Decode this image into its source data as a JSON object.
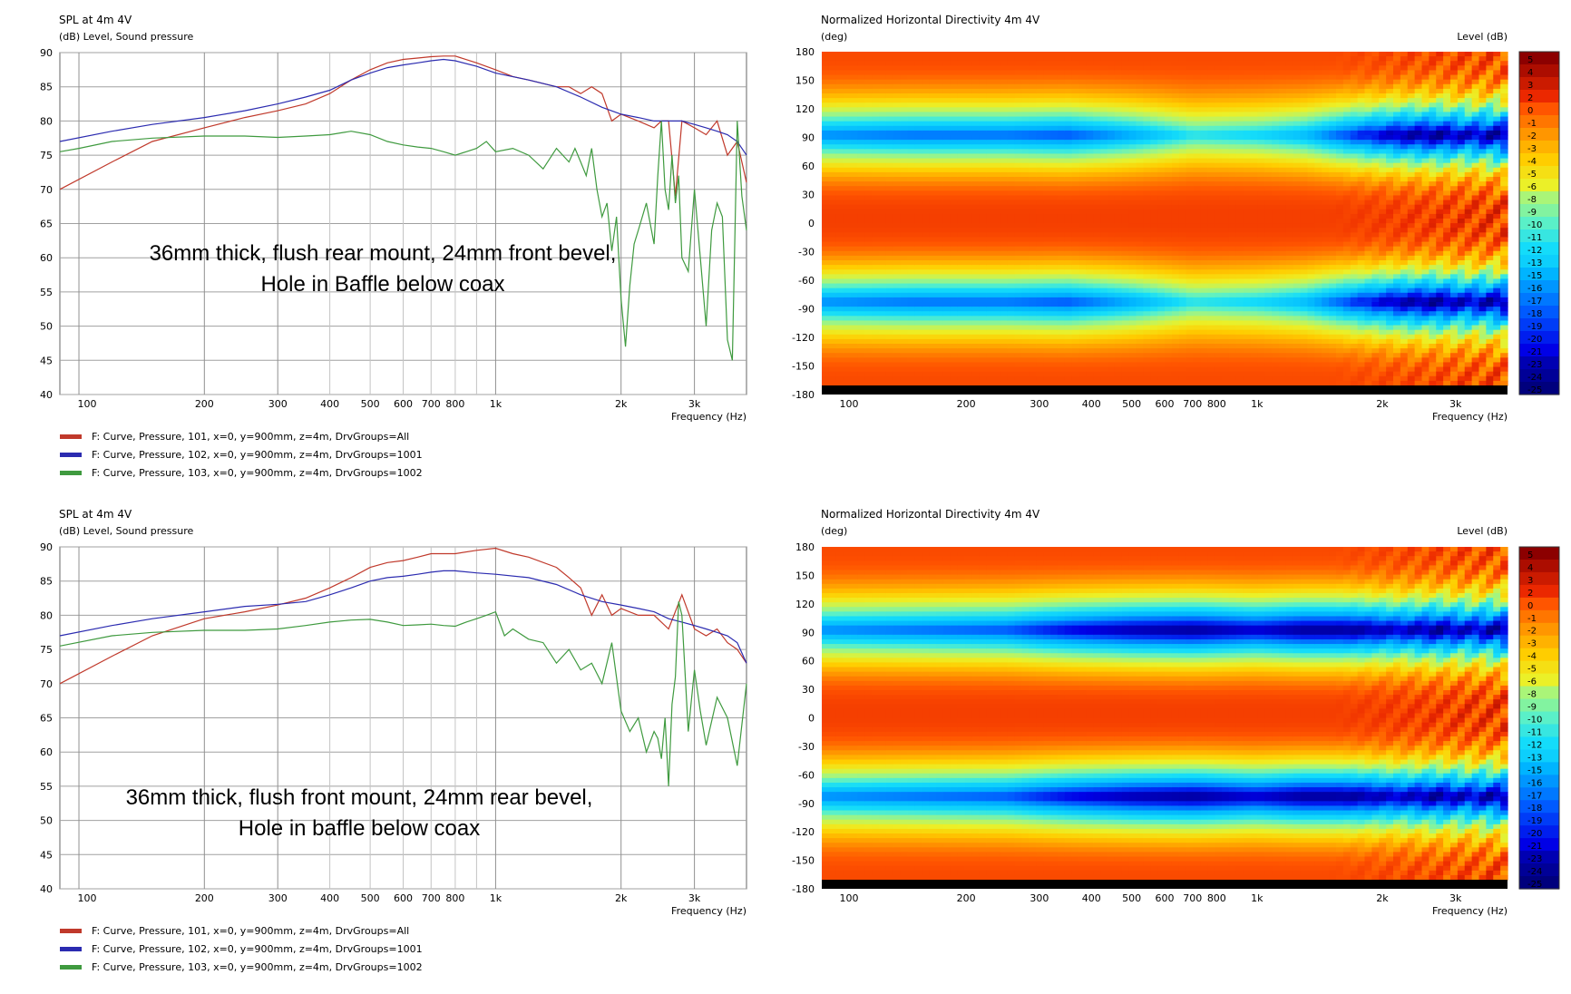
{
  "colors": {
    "red": "#c0392b",
    "blue": "#2b2bb0",
    "green": "#3f9a3f",
    "grid": "#9a9a9a"
  },
  "chart_data": [
    {
      "type": "line",
      "title": "SPL at 4m 4V",
      "ylabel": "(dB)  Level, Sound pressure",
      "xlabel": "Frequency  (Hz)",
      "xscale": "log",
      "xlim": [
        90,
        4000
      ],
      "ylim": [
        40,
        90
      ],
      "grid": true,
      "xticks": [
        {
          "v": 100,
          "label": "100"
        },
        {
          "v": 200,
          "label": "200"
        },
        {
          "v": 300,
          "label": "300"
        },
        {
          "v": 400,
          "label": "400"
        },
        {
          "v": 500,
          "label": "500"
        },
        {
          "v": 600,
          "label": "600"
        },
        {
          "v": 700,
          "label": "700"
        },
        {
          "v": 800,
          "label": "800"
        },
        {
          "v": 1000,
          "label": "1k"
        },
        {
          "v": 2000,
          "label": "2k"
        },
        {
          "v": 3000,
          "label": "3k"
        }
      ],
      "yticks": [
        40,
        45,
        50,
        55,
        60,
        65,
        70,
        75,
        80,
        85,
        90
      ],
      "annotation": [
        "36mm thick, flush rear mount, 24mm front bevel,",
        "Hole in Baffle below coax"
      ],
      "series": [
        {
          "name": "F: Curve, Pressure, 101, x=0, y=900mm, z=4m, DrvGroups=All",
          "color": "#c0392b",
          "x": [
            90,
            120,
            150,
            200,
            250,
            300,
            350,
            400,
            450,
            500,
            550,
            600,
            650,
            700,
            750,
            800,
            900,
            1000,
            1100,
            1200,
            1400,
            1500,
            1600,
            1700,
            1800,
            1900,
            2000,
            2200,
            2400,
            2500,
            2600,
            2700,
            2800,
            3000,
            3200,
            3400,
            3600,
            3800,
            4000
          ],
          "y": [
            70,
            74,
            77,
            79,
            80.5,
            81.5,
            82.5,
            84,
            86,
            87.5,
            88.5,
            89,
            89.2,
            89.4,
            89.5,
            89.5,
            88.5,
            87.5,
            86.5,
            86,
            85,
            85,
            84,
            85,
            84,
            80,
            81,
            80,
            79,
            80,
            80,
            69,
            80,
            79,
            78,
            80,
            75,
            77,
            71
          ]
        },
        {
          "name": "F: Curve, Pressure, 102, x=0, y=900mm, z=4m, DrvGroups=1001",
          "color": "#2b2bb0",
          "x": [
            90,
            120,
            150,
            200,
            250,
            300,
            350,
            400,
            450,
            500,
            550,
            600,
            650,
            700,
            750,
            800,
            900,
            1000,
            1200,
            1400,
            1600,
            1800,
            2000,
            2200,
            2400,
            2600,
            2800,
            3000,
            3200,
            3400,
            3600,
            3800,
            4000
          ],
          "y": [
            77,
            78.5,
            79.5,
            80.5,
            81.5,
            82.5,
            83.5,
            84.5,
            86,
            87,
            87.8,
            88.2,
            88.5,
            88.8,
            89,
            88.8,
            88,
            87,
            86,
            85,
            83.5,
            82,
            81,
            80.5,
            80,
            80,
            80,
            79.5,
            79,
            78.5,
            78,
            77,
            75
          ]
        },
        {
          "name": "F: Curve, Pressure, 103, x=0, y=900mm, z=4m, DrvGroups=1002",
          "color": "#3f9a3f",
          "x": [
            90,
            100,
            120,
            150,
            200,
            250,
            300,
            350,
            400,
            450,
            500,
            550,
            600,
            650,
            700,
            750,
            800,
            850,
            900,
            950,
            1000,
            1100,
            1200,
            1300,
            1400,
            1500,
            1550,
            1600,
            1650,
            1700,
            1750,
            1800,
            1850,
            1900,
            1950,
            2000,
            2050,
            2100,
            2150,
            2200,
            2300,
            2400,
            2450,
            2500,
            2550,
            2600,
            2650,
            2700,
            2750,
            2800,
            2900,
            3000,
            3100,
            3200,
            3300,
            3400,
            3500,
            3600,
            3700,
            3800,
            3900,
            4000
          ],
          "y": [
            75.5,
            76,
            77,
            77.5,
            77.8,
            77.8,
            77.6,
            77.8,
            78,
            78.5,
            78,
            77,
            76.5,
            76.2,
            76,
            75.5,
            75,
            75.5,
            76,
            77,
            75.5,
            76,
            75,
            73,
            76,
            74,
            76,
            74,
            72,
            76,
            70,
            66,
            68,
            61,
            66,
            54,
            47,
            56,
            62,
            64,
            68,
            62,
            72,
            80,
            70,
            67,
            75,
            68,
            72,
            60,
            58,
            70,
            60,
            50,
            64,
            68,
            66,
            48,
            45,
            80,
            69,
            64
          ]
        }
      ]
    },
    {
      "type": "heatmap",
      "title": "Normalized Horizontal Directivity 4m 4V",
      "ylabel": "(deg)",
      "colorbar_label": "Level  (dB)",
      "xlabel": "Frequency  (Hz)",
      "xscale": "log",
      "xlim": [
        90,
        4000
      ],
      "ylim": [
        -180,
        180
      ],
      "xticks": [
        {
          "v": 100,
          "label": "100"
        },
        {
          "v": 200,
          "label": "200"
        },
        {
          "v": 300,
          "label": "300"
        },
        {
          "v": 400,
          "label": "400"
        },
        {
          "v": 500,
          "label": "500"
        },
        {
          "v": 600,
          "label": "600"
        },
        {
          "v": 700,
          "label": "700"
        },
        {
          "v": 800,
          "label": "800"
        },
        {
          "v": 1000,
          "label": "1k"
        },
        {
          "v": 2000,
          "label": "2k"
        },
        {
          "v": 3000,
          "label": "3k"
        }
      ],
      "yticks": [
        180,
        150,
        120,
        90,
        60,
        30,
        0,
        -30,
        -60,
        -90,
        -120,
        -150,
        -180
      ],
      "colorbar_ticks": [
        5,
        4,
        3,
        2,
        0,
        -1,
        -2,
        -3,
        -4,
        -5,
        -6,
        -8,
        -9,
        -10,
        -11,
        -12,
        -13,
        -15,
        -16,
        -17,
        -18,
        -19,
        -20,
        -21,
        -23,
        -24,
        -25
      ],
      "null_band": {
        "deg": 90,
        "depth_db": [
          -17,
          -18,
          -18,
          -19,
          -16,
          -12,
          -13,
          -15,
          -20,
          -24,
          -25,
          -23,
          -25
        ],
        "at_hz": [
          90,
          150,
          250,
          350,
          500,
          700,
          1000,
          1300,
          1700,
          2200,
          2700,
          3200,
          4000
        ]
      }
    },
    {
      "type": "line",
      "title": "SPL at 4m 4V",
      "ylabel": "(dB)  Level, Sound pressure",
      "xlabel": "Frequency  (Hz)",
      "xscale": "log",
      "xlim": [
        90,
        4000
      ],
      "ylim": [
        40,
        90
      ],
      "grid": true,
      "xticks": [
        {
          "v": 100,
          "label": "100"
        },
        {
          "v": 200,
          "label": "200"
        },
        {
          "v": 300,
          "label": "300"
        },
        {
          "v": 400,
          "label": "400"
        },
        {
          "v": 500,
          "label": "500"
        },
        {
          "v": 600,
          "label": "600"
        },
        {
          "v": 700,
          "label": "700"
        },
        {
          "v": 800,
          "label": "800"
        },
        {
          "v": 1000,
          "label": "1k"
        },
        {
          "v": 2000,
          "label": "2k"
        },
        {
          "v": 3000,
          "label": "3k"
        }
      ],
      "yticks": [
        40,
        45,
        50,
        55,
        60,
        65,
        70,
        75,
        80,
        85,
        90
      ],
      "annotation": [
        "36mm thick, flush front mount, 24mm rear bevel,",
        "Hole in baffle below coax"
      ],
      "series": [
        {
          "name": "F: Curve, Pressure, 101, x=0, y=900mm, z=4m, DrvGroups=All",
          "color": "#c0392b",
          "x": [
            90,
            120,
            150,
            200,
            250,
            300,
            350,
            400,
            450,
            500,
            550,
            600,
            650,
            700,
            750,
            800,
            900,
            1000,
            1100,
            1200,
            1400,
            1500,
            1600,
            1700,
            1800,
            1900,
            2000,
            2200,
            2400,
            2600,
            2800,
            3000,
            3200,
            3400,
            3600,
            3800,
            4000
          ],
          "y": [
            70,
            74,
            77,
            79.5,
            80.5,
            81.5,
            82.5,
            84,
            85.5,
            87,
            87.7,
            88,
            88.5,
            89,
            89,
            89,
            89.5,
            89.8,
            89,
            88.5,
            87,
            85.5,
            84,
            80,
            83,
            80,
            81,
            80,
            80,
            78,
            83,
            78,
            77,
            78,
            76,
            75,
            73
          ]
        },
        {
          "name": "F: Curve, Pressure, 102, x=0, y=900mm, z=4m, DrvGroups=1001",
          "color": "#2b2bb0",
          "x": [
            90,
            120,
            150,
            200,
            250,
            300,
            350,
            400,
            450,
            500,
            550,
            600,
            650,
            700,
            750,
            800,
            900,
            1000,
            1200,
            1400,
            1600,
            1800,
            2000,
            2200,
            2400,
            2600,
            2800,
            3000,
            3200,
            3400,
            3600,
            3800,
            4000
          ],
          "y": [
            77,
            78.5,
            79.5,
            80.5,
            81.3,
            81.6,
            82,
            83,
            84,
            85,
            85.5,
            85.7,
            86,
            86.3,
            86.5,
            86.5,
            86.2,
            86,
            85.5,
            84.5,
            83,
            82,
            81.5,
            81,
            80.5,
            79.5,
            79,
            78.5,
            78,
            77.5,
            77,
            76,
            73
          ]
        },
        {
          "name": "F: Curve, Pressure, 103, x=0, y=900mm, z=4m, DrvGroups=1002",
          "color": "#3f9a3f",
          "x": [
            90,
            120,
            150,
            200,
            250,
            300,
            350,
            400,
            450,
            500,
            550,
            600,
            650,
            700,
            750,
            800,
            850,
            900,
            950,
            1000,
            1050,
            1100,
            1200,
            1300,
            1400,
            1500,
            1600,
            1700,
            1800,
            1900,
            2000,
            2100,
            2200,
            2300,
            2400,
            2450,
            2500,
            2550,
            2600,
            2650,
            2700,
            2750,
            2800,
            2900,
            3000,
            3100,
            3200,
            3400,
            3600,
            3800,
            4000
          ],
          "y": [
            75.5,
            77,
            77.5,
            77.8,
            77.8,
            78,
            78.5,
            79,
            79.3,
            79.4,
            79,
            78.5,
            78.6,
            78.7,
            78.5,
            78.4,
            79,
            79.5,
            80,
            80.5,
            77,
            78,
            76.5,
            76,
            73,
            75,
            72,
            73,
            70,
            76,
            66,
            63,
            65,
            60,
            63,
            62,
            59,
            65,
            55,
            67,
            71,
            82,
            80,
            63,
            72,
            66,
            61,
            68,
            65,
            58,
            70
          ]
        }
      ]
    },
    {
      "type": "heatmap",
      "title": "Normalized Horizontal Directivity 4m 4V",
      "ylabel": "(deg)",
      "colorbar_label": "Level  (dB)",
      "xlabel": "Frequency  (Hz)",
      "xscale": "log",
      "xlim": [
        90,
        4000
      ],
      "ylim": [
        -180,
        180
      ],
      "xticks": [
        {
          "v": 100,
          "label": "100"
        },
        {
          "v": 200,
          "label": "200"
        },
        {
          "v": 300,
          "label": "300"
        },
        {
          "v": 400,
          "label": "400"
        },
        {
          "v": 500,
          "label": "500"
        },
        {
          "v": 600,
          "label": "600"
        },
        {
          "v": 700,
          "label": "700"
        },
        {
          "v": 800,
          "label": "800"
        },
        {
          "v": 1000,
          "label": "1k"
        },
        {
          "v": 2000,
          "label": "2k"
        },
        {
          "v": 3000,
          "label": "3k"
        }
      ],
      "yticks": [
        180,
        150,
        120,
        90,
        60,
        30,
        0,
        -30,
        -60,
        -90,
        -120,
        -150,
        -180
      ],
      "colorbar_ticks": [
        5,
        4,
        3,
        2,
        0,
        -1,
        -2,
        -3,
        -4,
        -5,
        -6,
        -8,
        -9,
        -10,
        -11,
        -12,
        -13,
        -15,
        -16,
        -17,
        -18,
        -19,
        -20,
        -21,
        -23,
        -24,
        -25
      ],
      "null_band": {
        "deg": 90,
        "depth_db": [
          -17,
          -18,
          -19,
          -22,
          -24,
          -25,
          -23,
          -25,
          -25,
          -23,
          -25,
          -23,
          -25
        ],
        "at_hz": [
          90,
          150,
          250,
          350,
          500,
          700,
          1000,
          1300,
          1700,
          2200,
          2700,
          3200,
          4000
        ]
      }
    }
  ]
}
